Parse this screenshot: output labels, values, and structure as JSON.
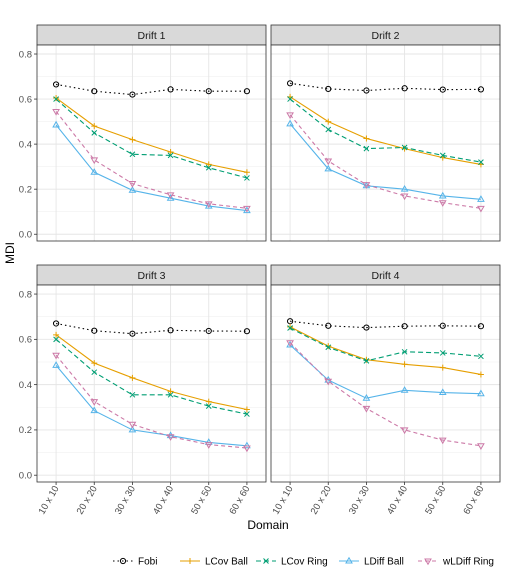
{
  "chart_data": {
    "type": "line",
    "xlabel": "Domain",
    "ylabel": "MDI",
    "categories": [
      "10 x 10",
      "20 x 20",
      "30 x 30",
      "40 x 40",
      "50 x 50",
      "60 x 60"
    ],
    "ylim": [
      -0.03,
      0.84
    ],
    "yticks": [
      0.0,
      0.2,
      0.4,
      0.6,
      0.8
    ],
    "ytick_labels": [
      "0.0",
      "0.2",
      "0.4",
      "0.6",
      "0.8"
    ],
    "grid": true,
    "legend_position": "bottom",
    "series_styles": [
      {
        "name": "Fobi",
        "color": "#000000",
        "dash": "1.5,3",
        "marker": "circle"
      },
      {
        "name": "LCov Ball",
        "color": "#E69F00",
        "dash": "",
        "marker": "plus"
      },
      {
        "name": "LCov Ring",
        "color": "#009E73",
        "dash": "5,3",
        "marker": "x"
      },
      {
        "name": "LDiff Ball",
        "color": "#56B4E9",
        "dash": "",
        "marker": "triangle-up"
      },
      {
        "name": "wLDiff Ring",
        "color": "#CC79A7",
        "dash": "4,3",
        "marker": "triangle-down"
      }
    ],
    "panels": [
      {
        "title": "Drift 1",
        "series": [
          {
            "name": "Fobi",
            "values": [
              0.665,
              0.635,
              0.62,
              0.643,
              0.635,
              0.635
            ]
          },
          {
            "name": "LCov Ball",
            "values": [
              0.605,
              0.48,
              0.42,
              0.365,
              0.31,
              0.275
            ]
          },
          {
            "name": "LCov Ring",
            "values": [
              0.6,
              0.45,
              0.355,
              0.35,
              0.295,
              0.25
            ]
          },
          {
            "name": "LDiff Ball",
            "values": [
              0.485,
              0.275,
              0.195,
              0.16,
              0.125,
              0.105
            ]
          },
          {
            "name": "wLDiff Ring",
            "values": [
              0.545,
              0.33,
              0.225,
              0.175,
              0.135,
              0.115
            ]
          }
        ]
      },
      {
        "title": "Drift 2",
        "series": [
          {
            "name": "Fobi",
            "values": [
              0.67,
              0.645,
              0.638,
              0.648,
              0.642,
              0.643
            ]
          },
          {
            "name": "LCov Ball",
            "values": [
              0.61,
              0.5,
              0.425,
              0.38,
              0.34,
              0.31
            ]
          },
          {
            "name": "LCov Ring",
            "values": [
              0.6,
              0.465,
              0.38,
              0.385,
              0.35,
              0.32
            ]
          },
          {
            "name": "LDiff Ball",
            "values": [
              0.49,
              0.29,
              0.215,
              0.2,
              0.17,
              0.155
            ]
          },
          {
            "name": "wLDiff Ring",
            "values": [
              0.53,
              0.325,
              0.22,
              0.17,
              0.14,
              0.115
            ]
          }
        ]
      },
      {
        "title": "Drift 3",
        "series": [
          {
            "name": "Fobi",
            "values": [
              0.67,
              0.638,
              0.625,
              0.64,
              0.637,
              0.636
            ]
          },
          {
            "name": "LCov Ball",
            "values": [
              0.62,
              0.495,
              0.43,
              0.37,
              0.325,
              0.29
            ]
          },
          {
            "name": "LCov Ring",
            "values": [
              0.6,
              0.455,
              0.355,
              0.355,
              0.305,
              0.27
            ]
          },
          {
            "name": "LDiff Ball",
            "values": [
              0.485,
              0.285,
              0.2,
              0.175,
              0.145,
              0.13
            ]
          },
          {
            "name": "wLDiff Ring",
            "values": [
              0.53,
              0.325,
              0.225,
              0.17,
              0.135,
              0.12
            ]
          }
        ]
      },
      {
        "title": "Drift 4",
        "series": [
          {
            "name": "Fobi",
            "values": [
              0.68,
              0.66,
              0.652,
              0.658,
              0.66,
              0.658
            ]
          },
          {
            "name": "LCov Ball",
            "values": [
              0.655,
              0.57,
              0.51,
              0.49,
              0.475,
              0.445
            ]
          },
          {
            "name": "LCov Ring",
            "values": [
              0.65,
              0.565,
              0.505,
              0.545,
              0.54,
              0.525
            ]
          },
          {
            "name": "LDiff Ball",
            "values": [
              0.575,
              0.42,
              0.34,
              0.375,
              0.365,
              0.36
            ]
          },
          {
            "name": "wLDiff Ring",
            "values": [
              0.585,
              0.415,
              0.295,
              0.2,
              0.155,
              0.13
            ]
          }
        ]
      }
    ]
  }
}
